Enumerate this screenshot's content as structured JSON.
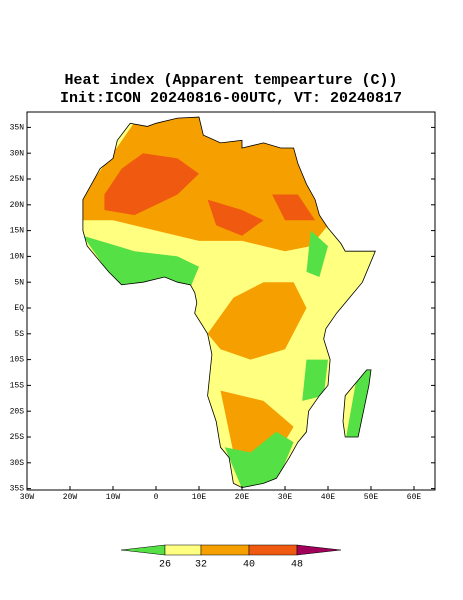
{
  "map": {
    "title": "Heat index (Apparent tempearture (C))",
    "subtitle": "Init:ICON 20240816-00UTC, VT: 20240817",
    "lat_ticks": [
      {
        "value": 35,
        "label": "35N"
      },
      {
        "value": 30,
        "label": "30N"
      },
      {
        "value": 25,
        "label": "25N"
      },
      {
        "value": 20,
        "label": "20N"
      },
      {
        "value": 15,
        "label": "15N"
      },
      {
        "value": 10,
        "label": "10N"
      },
      {
        "value": 5,
        "label": "5N"
      },
      {
        "value": 0,
        "label": "EQ"
      },
      {
        "value": -5,
        "label": "5S"
      },
      {
        "value": -10,
        "label": "10S"
      },
      {
        "value": -15,
        "label": "15S"
      },
      {
        "value": -20,
        "label": "20S"
      },
      {
        "value": -25,
        "label": "25S"
      },
      {
        "value": -30,
        "label": "30S"
      },
      {
        "value": -35,
        "label": "35S"
      }
    ],
    "lon_ticks": [
      {
        "value": -30,
        "label": "30W"
      },
      {
        "value": -20,
        "label": "20W"
      },
      {
        "value": -10,
        "label": "10W"
      },
      {
        "value": 0,
        "label": "0"
      },
      {
        "value": 10,
        "label": "10E"
      },
      {
        "value": 20,
        "label": "20E"
      },
      {
        "value": 30,
        "label": "30E"
      },
      {
        "value": 40,
        "label": "40E"
      },
      {
        "value": 50,
        "label": "50E"
      },
      {
        "value": 60,
        "label": "60E"
      }
    ],
    "colorbar": {
      "levels": [
        26,
        32,
        40,
        48
      ],
      "colors": [
        "#55e045",
        "#ffff80",
        "#f5a000",
        "#f05a10",
        "#a0005a"
      ]
    }
  }
}
